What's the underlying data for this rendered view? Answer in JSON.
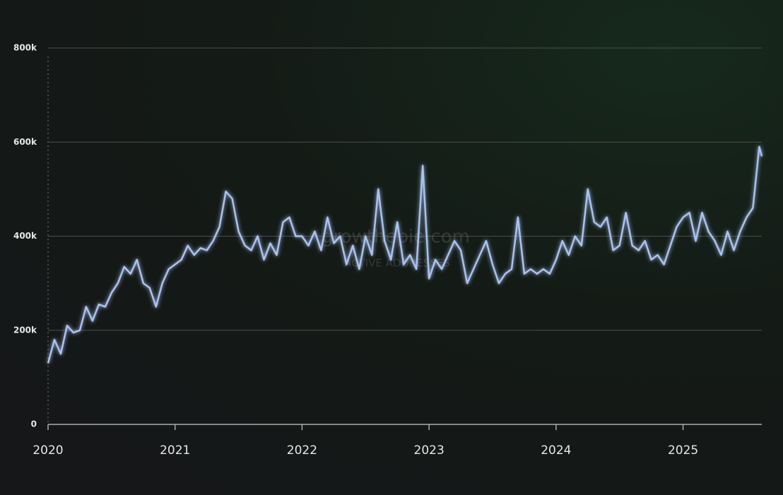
{
  "chart_data": {
    "type": "line",
    "watermark": "growthepie.com",
    "watermark_subtitle": "ACTIVE ADDRESSES",
    "x": [
      2020,
      2020.05,
      2020.1,
      2020.15,
      2020.2,
      2020.25,
      2020.3,
      2020.35,
      2020.4,
      2020.45,
      2020.5,
      2020.55,
      2020.6,
      2020.65,
      2020.7,
      2020.75,
      2020.8,
      2020.85,
      2020.9,
      2020.95,
      2021,
      2021.05,
      2021.1,
      2021.15,
      2021.2,
      2021.25,
      2021.3,
      2021.35,
      2021.4,
      2021.45,
      2021.5,
      2021.55,
      2021.6,
      2021.65,
      2021.7,
      2021.75,
      2021.8,
      2021.85,
      2021.9,
      2021.95,
      2022,
      2022.05,
      2022.1,
      2022.15,
      2022.2,
      2022.25,
      2022.3,
      2022.35,
      2022.4,
      2022.45,
      2022.5,
      2022.55,
      2022.6,
      2022.65,
      2022.7,
      2022.75,
      2022.8,
      2022.85,
      2022.9,
      2022.95,
      2023,
      2023.05,
      2023.1,
      2023.15,
      2023.2,
      2023.25,
      2023.3,
      2023.35,
      2023.4,
      2023.45,
      2023.5,
      2023.55,
      2023.6,
      2023.65,
      2023.7,
      2023.75,
      2023.8,
      2023.85,
      2023.9,
      2023.95,
      2024,
      2024.05,
      2024.1,
      2024.15,
      2024.2,
      2024.25,
      2024.3,
      2024.35,
      2024.4,
      2024.45,
      2024.5,
      2024.55,
      2024.6,
      2024.65,
      2024.7,
      2024.75,
      2024.8,
      2024.85,
      2024.9,
      2024.95,
      2025,
      2025.05,
      2025.1,
      2025.15,
      2025.2,
      2025.25,
      2025.3,
      2025.35,
      2025.4,
      2025.45,
      2025.5,
      2025.55,
      2025.6,
      2025.62
    ],
    "series": [
      {
        "name": "Active Addresses",
        "color": "#a9c2ef",
        "values": [
          130000,
          180000,
          150000,
          210000,
          195000,
          200000,
          250000,
          220000,
          255000,
          250000,
          280000,
          300000,
          335000,
          320000,
          350000,
          300000,
          290000,
          250000,
          300000,
          330000,
          340000,
          350000,
          380000,
          360000,
          375000,
          370000,
          390000,
          420000,
          495000,
          480000,
          410000,
          380000,
          370000,
          400000,
          350000,
          385000,
          360000,
          430000,
          440000,
          400000,
          400000,
          380000,
          410000,
          370000,
          440000,
          385000,
          400000,
          340000,
          380000,
          330000,
          400000,
          360000,
          500000,
          390000,
          350000,
          430000,
          340000,
          360000,
          330000,
          550000,
          310000,
          350000,
          330000,
          360000,
          390000,
          370000,
          300000,
          330000,
          360000,
          390000,
          340000,
          300000,
          320000,
          330000,
          440000,
          320000,
          330000,
          320000,
          330000,
          320000,
          350000,
          390000,
          360000,
          400000,
          380000,
          500000,
          430000,
          420000,
          440000,
          370000,
          380000,
          450000,
          380000,
          370000,
          390000,
          350000,
          360000,
          340000,
          380000,
          420000,
          440000,
          450000,
          390000,
          450000,
          410000,
          390000,
          360000,
          410000,
          370000,
          410000,
          440000,
          460000,
          590000,
          570000
        ]
      }
    ],
    "xlim": [
      2020,
      2025.62
    ],
    "xticks": [
      2020,
      2021,
      2022,
      2023,
      2024,
      2025
    ],
    "ylim": [
      0,
      800000
    ],
    "yticks": [
      0,
      {
        "value": 200000,
        "label": "200k"
      },
      {
        "value": 400000,
        "label": "400k"
      },
      {
        "value": 600000,
        "label": "600k"
      },
      {
        "value": 800000,
        "label": "800k"
      }
    ],
    "grid": true
  }
}
